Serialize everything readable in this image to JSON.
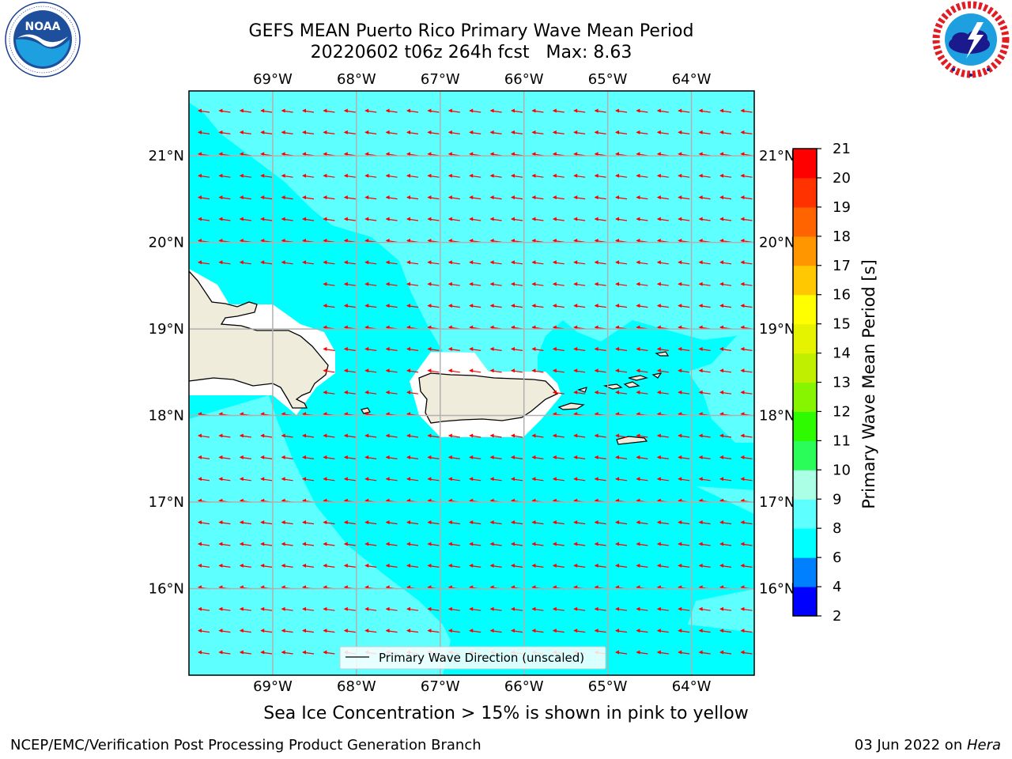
{
  "title": {
    "line1": "GEFS MEAN Puerto Rico Primary Wave Mean Period",
    "line2": "20220602 t06z 264h fcst   Max: 8.63"
  },
  "logos": {
    "noaa": {
      "text": "NOAA",
      "ring_text": "NATIONAL OCEANIC AND ATMOSPHERIC ADMINISTRATION · U.S. DEPARTMENT OF COMMERCE",
      "icon": "noaa-seagull-logo"
    },
    "nws": {
      "ring_text": "NATIONAL WEATHER SERVICE",
      "icon": "nws-lightning-cloud-logo"
    }
  },
  "map": {
    "lon_ticks": [
      "69°W",
      "68°W",
      "67°W",
      "66°W",
      "65°W",
      "64°W"
    ],
    "lat_ticks": [
      "21°N",
      "20°N",
      "19°N",
      "18°N",
      "17°N",
      "16°N"
    ],
    "lon_range": [
      -70.0,
      -63.25
    ],
    "lat_range": [
      15.0,
      21.75
    ],
    "land_color": "#efecdc",
    "shallow_color": "#5effff",
    "deep_color": "#00ffff",
    "arrow_color": "#ff0000",
    "legend_label": "Primary Wave Direction (unscaled)"
  },
  "colorbar": {
    "label": "Primary Wave Mean Period [s]",
    "ticks": [
      "2",
      "4",
      "6",
      "8",
      "9",
      "10",
      "11",
      "12",
      "13",
      "14",
      "15",
      "16",
      "17",
      "18",
      "19",
      "20",
      "21"
    ],
    "colors": [
      "#0000ff",
      "#007fff",
      "#00ffff",
      "#5effff",
      "#aaffe5",
      "#2afc5a",
      "#2efa00",
      "#87f500",
      "#c0ef00",
      "#e6f300",
      "#ffff00",
      "#ffc800",
      "#ff9600",
      "#ff6400",
      "#ff3200",
      "#ff0000"
    ]
  },
  "ice_note": "Sea Ice Concentration > 15% is shown in pink to yellow",
  "footer": {
    "left": "NCEP/EMC/Verification Post Processing Product Generation Branch",
    "date": "03 Jun 2022 on ",
    "host": "Hera"
  }
}
